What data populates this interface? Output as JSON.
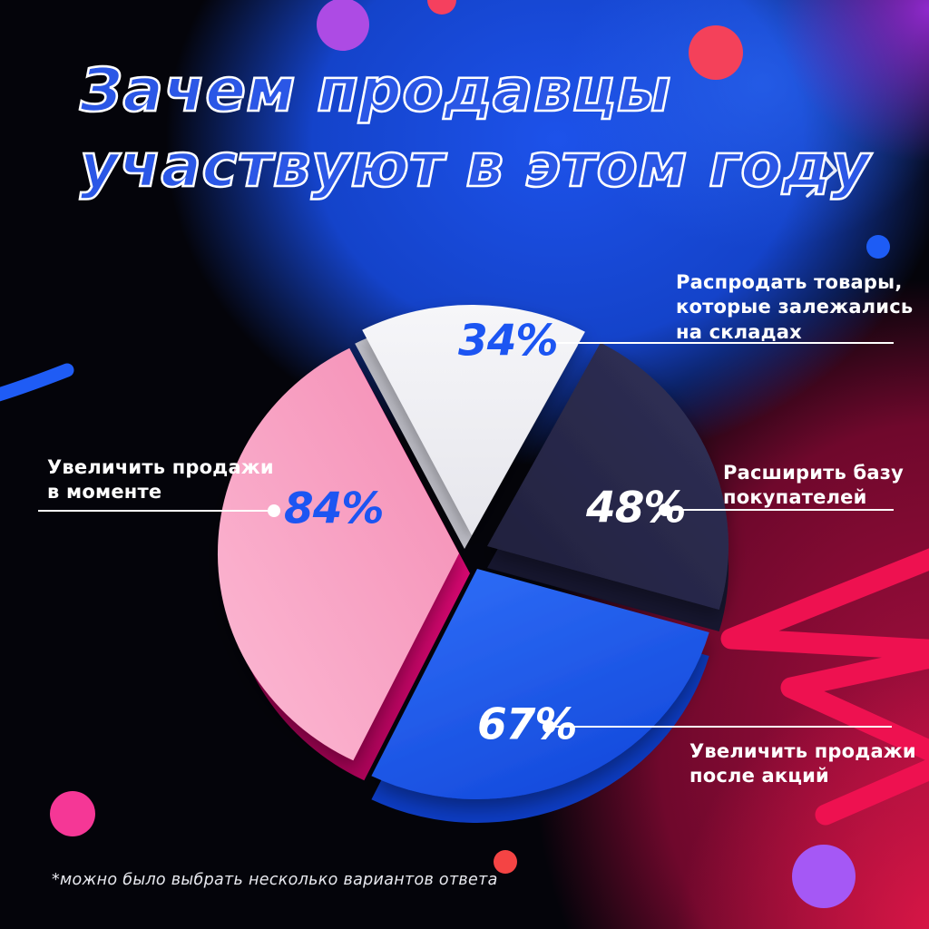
{
  "title": {
    "line1": "Зачем продавцы",
    "line2": "участвуют в этом году"
  },
  "footnote": "*можно было выбрать несколько вариантов ответа",
  "colors": {
    "title_blue": "#2b57e6",
    "percent_blue": "#1c55f2",
    "leader_line": "#ffffff",
    "background_blue": "#1d52ea",
    "background_crimson": "#a50e3e"
  },
  "chart_data": {
    "type": "pie",
    "title": "Зачем продавцы участвуют в этом году",
    "note": "Multi-select survey: answers sum to more than 100%",
    "legend_position": "callouts around pie",
    "segments": [
      {
        "label": "Распродать товары, которые залежались на складах",
        "value_pct": 34,
        "display": "34%",
        "color": "#f0f0f3",
        "side_color": "#c7c7d0",
        "percent_text_color": "#1c55f2"
      },
      {
        "label": "Расширить базу покупателей",
        "value_pct": 48,
        "display": "48%",
        "color": "#272742",
        "side_color": "#171730",
        "percent_text_color": "#ffffff"
      },
      {
        "label": "Увеличить продажи после акций",
        "value_pct": 67,
        "display": "67%",
        "color": "#1656ee",
        "side_color": "#0d3cc2",
        "percent_text_color": "#ffffff"
      },
      {
        "label": "Увеличить продажи в моменте",
        "value_pct": 84,
        "display": "84%",
        "color": "#f9a0c4",
        "side_color": "#e0007a",
        "percent_text_color": "#1c55f2"
      }
    ]
  },
  "callouts": {
    "c34": {
      "percent": "34%",
      "lines": [
        "Распродать товары,",
        "которые залежались",
        "на складах"
      ]
    },
    "c48": {
      "percent": "48%",
      "lines": [
        "Расширить базу",
        "покупателей"
      ]
    },
    "c67": {
      "percent": "67%",
      "lines": [
        "Увеличить продажи",
        "после акций"
      ]
    },
    "c84": {
      "percent": "84%",
      "lines": [
        "Увеличить продажи",
        "в моменте"
      ]
    }
  }
}
